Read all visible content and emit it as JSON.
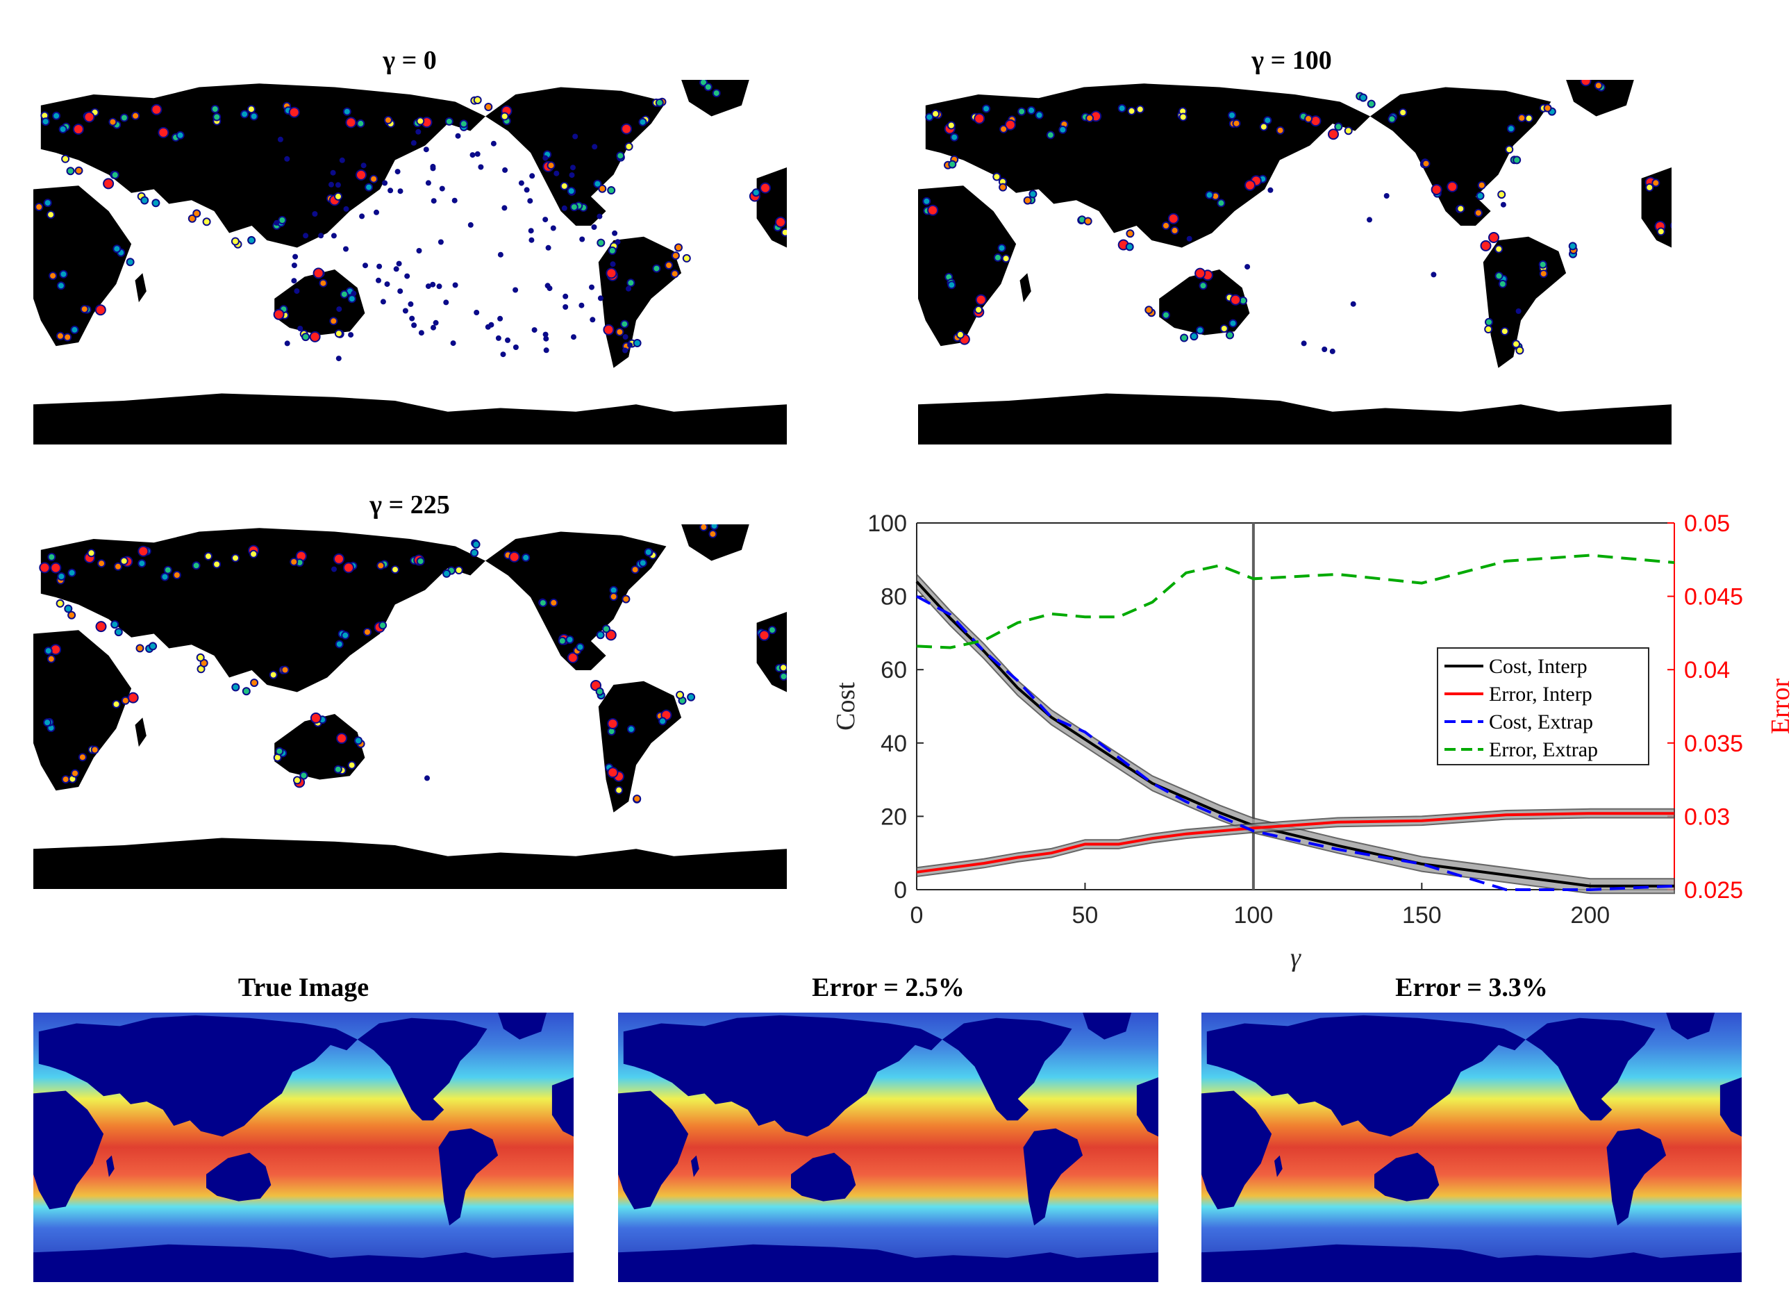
{
  "maps": [
    {
      "gamma_symbol": "γ",
      "title_suffix": " = 0"
    },
    {
      "gamma_symbol": "γ",
      "title_suffix": " = 100"
    },
    {
      "gamma_symbol": "γ",
      "title_suffix": " = 225"
    }
  ],
  "bottom_titles": [
    "True Image",
    "Error = 2.5%",
    "Error = 3.3%"
  ],
  "colors": {
    "land": "#000000",
    "ocean_dots": "#0a0a8a",
    "sst_land": "#00008b"
  },
  "chart_data": {
    "type": "line",
    "title": "",
    "xlabel": "γ",
    "ylabel": "Cost",
    "y2label": "Error",
    "xlim": [
      0,
      225
    ],
    "ylim": [
      0,
      100
    ],
    "y2lim": [
      0.025,
      0.05
    ],
    "xticks": [
      0,
      50,
      100,
      150,
      200
    ],
    "yticks": [
      0,
      20,
      40,
      60,
      80,
      100
    ],
    "y2ticks": [
      "0.025",
      "0.03",
      "0.035",
      "0.04",
      "0.045",
      "0.05"
    ],
    "vline_x": 100,
    "legend_position": "center-right",
    "series": [
      {
        "name": "Cost, Interp",
        "axis": "left",
        "color": "#000000",
        "dash": "solid",
        "x": [
          0,
          10,
          20,
          30,
          40,
          50,
          60,
          70,
          80,
          90,
          100,
          125,
          150,
          175,
          200,
          225
        ],
        "y": [
          84,
          74,
          65,
          55,
          47,
          41,
          35,
          29,
          25,
          21,
          17.5,
          12,
          7,
          4,
          1,
          1
        ],
        "band": 2
      },
      {
        "name": "Error, Interp",
        "axis": "right",
        "color": "#ff0000",
        "dash": "solid",
        "x": [
          0,
          10,
          20,
          30,
          40,
          50,
          60,
          70,
          80,
          90,
          100,
          125,
          150,
          175,
          200,
          225
        ],
        "y": [
          0.0262,
          0.0265,
          0.0268,
          0.0272,
          0.0275,
          0.0281,
          0.0281,
          0.0285,
          0.0288,
          0.029,
          0.0292,
          0.0296,
          0.0297,
          0.0301,
          0.0302,
          0.0302
        ],
        "band": 0.0003
      },
      {
        "name": "Cost, Extrap",
        "axis": "left",
        "color": "#0000ff",
        "dash": "dashed",
        "x": [
          0,
          10,
          20,
          30,
          40,
          50,
          60,
          70,
          80,
          90,
          100,
          125,
          150,
          175,
          200,
          225
        ],
        "y": [
          80,
          75,
          65,
          57,
          47,
          43,
          36,
          29,
          24,
          20,
          16,
          11,
          7,
          0,
          0,
          1
        ]
      },
      {
        "name": "Error, Extrap",
        "axis": "right",
        "color": "#00aa00",
        "dash": "dashed",
        "x": [
          0,
          10,
          20,
          30,
          40,
          50,
          60,
          70,
          80,
          90,
          100,
          125,
          150,
          175,
          200,
          225
        ],
        "y": [
          0.0416,
          0.0415,
          0.042,
          0.0432,
          0.0438,
          0.0436,
          0.0436,
          0.0446,
          0.0466,
          0.0471,
          0.0462,
          0.0465,
          0.0459,
          0.0474,
          0.0478,
          0.0473
        ]
      }
    ]
  }
}
